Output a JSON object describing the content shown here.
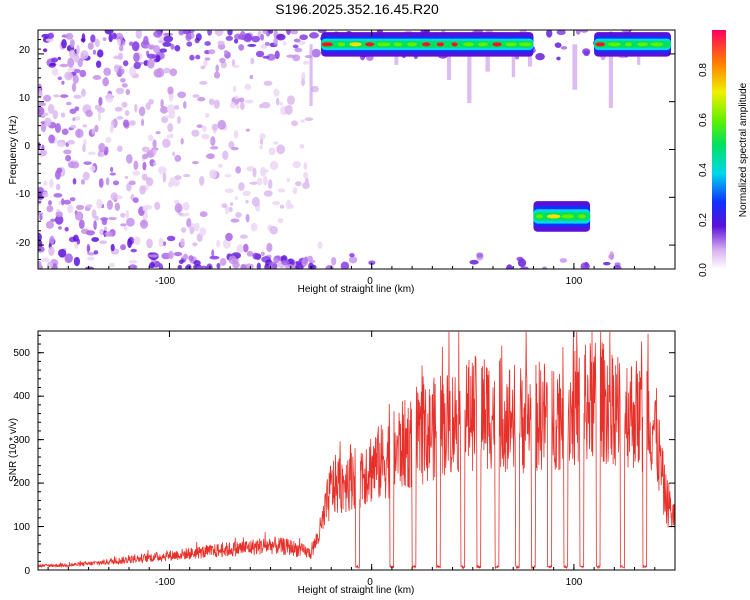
{
  "title": "S196.2025.352.16.45.R20",
  "chart_data": [
    {
      "type": "heatmap",
      "xlabel": "Height of straight line (km)",
      "ylabel": "Frequency (Hz)",
      "xlim": [
        -165,
        150
      ],
      "ylim": [
        -25,
        25
      ],
      "xticks": [
        -100,
        0,
        100
      ],
      "xtick_labels": [
        "-100",
        "0",
        "100"
      ],
      "yticks": [
        20,
        10,
        0,
        -10,
        -20
      ],
      "ytick_labels": [
        "20",
        "10",
        "0",
        "-10",
        "-20"
      ],
      "colorbar": {
        "label": "Normalized spectral amplitude",
        "range": [
          0.0,
          0.95
        ],
        "ticks": [
          0.0,
          0.2,
          0.4,
          0.6,
          0.8
        ],
        "tick_labels": [
          "0.0",
          "0.2",
          "0.4",
          "0.6",
          "0.8"
        ]
      },
      "features": [
        {
          "name": "upper band (strong)",
          "x_start": -25,
          "x_end": 80,
          "freq": 22,
          "peak_amplitude": 0.9
        },
        {
          "name": "upper band right",
          "x_start": 110,
          "x_end": 148,
          "freq": 22,
          "peak_amplitude": 0.9
        },
        {
          "name": "lower band",
          "x_start": 80,
          "x_end": 108,
          "freq": -14,
          "peak_amplitude": 0.9
        },
        {
          "name": "diffuse noise left",
          "x_start": -165,
          "x_end": -30,
          "freq_range": [
            -25,
            25
          ],
          "peak_amplitude": 0.3
        }
      ],
      "colors": {
        "low": "#e8c8f0",
        "mid": "#6a1be0",
        "peak": "#e81020"
      }
    },
    {
      "type": "line",
      "xlabel": "Height of straight line (km)",
      "ylabel": "SNR (10 * v/v)",
      "xlim": [
        -165,
        150
      ],
      "ylim": [
        0,
        550
      ],
      "xticks": [
        -100,
        0,
        100
      ],
      "xtick_labels": [
        "-100",
        "0",
        "100"
      ],
      "yticks": [
        0,
        100,
        200,
        300,
        400,
        500
      ],
      "ytick_labels": [
        "0",
        "100",
        "200",
        "300",
        "400",
        "500"
      ],
      "series": [
        {
          "name": "SNR",
          "color": "#e8302a",
          "x": [
            -165,
            -150,
            -140,
            -130,
            -120,
            -110,
            -100,
            -90,
            -80,
            -70,
            -60,
            -50,
            -40,
            -30,
            -25,
            -20,
            -15,
            -10,
            -5,
            0,
            5,
            10,
            15,
            20,
            25,
            30,
            35,
            40,
            45,
            50,
            55,
            60,
            65,
            70,
            75,
            80,
            85,
            90,
            95,
            100,
            105,
            110,
            115,
            120,
            125,
            130,
            135,
            140,
            145,
            150
          ],
          "values": [
            10,
            12,
            15,
            20,
            25,
            30,
            35,
            40,
            45,
            50,
            55,
            60,
            55,
            40,
            100,
            200,
            210,
            230,
            240,
            250,
            260,
            280,
            300,
            310,
            320,
            340,
            350,
            360,
            370,
            380,
            385,
            380,
            375,
            370,
            365,
            370,
            375,
            380,
            385,
            390,
            400,
            410,
            405,
            400,
            390,
            380,
            370,
            350,
            180,
            120
          ],
          "dropouts_x": [
            -7,
            10,
            21,
            33,
            45,
            53,
            62,
            72,
            80,
            88,
            96,
            104,
            112,
            124,
            135
          ]
        }
      ]
    }
  ]
}
